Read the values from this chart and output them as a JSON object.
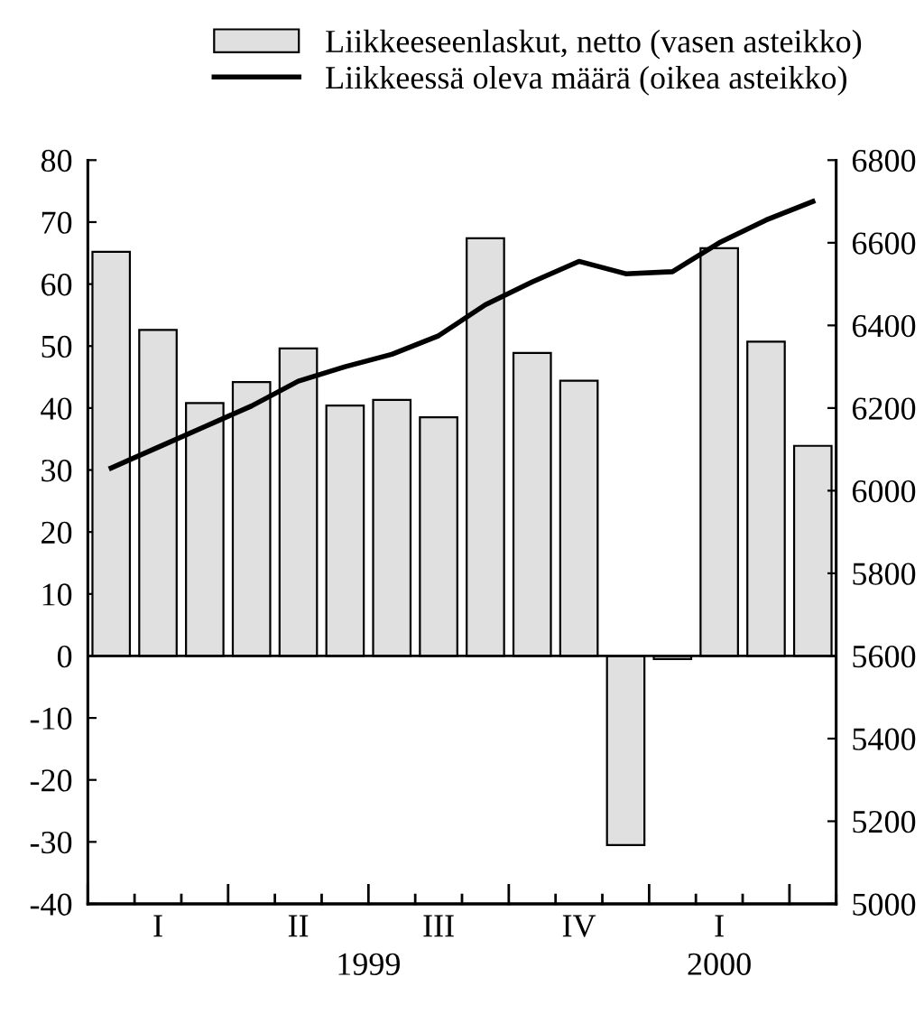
{
  "chart_data": {
    "type": "bar",
    "categories": [
      null,
      "I",
      null,
      null,
      "II",
      null,
      null,
      "III",
      null,
      null,
      "IV",
      null,
      null,
      "I",
      null,
      null
    ],
    "series": [
      {
        "name": "Liikkeeseenlaskut, netto (vasen asteikko)",
        "color": "#e0e0e0",
        "values": [
          65.2,
          52.6,
          40.8,
          44.2,
          49.6,
          40.4,
          41.3,
          38.5,
          67.4,
          48.9,
          44.4,
          -30.5,
          -0.5,
          65.8,
          50.7,
          33.9
        ]
      },
      {
        "name": "Liikkeessä oleva määrä (oikea asteikko)",
        "type": "line",
        "axis": "y2",
        "color": "#000000",
        "values": [
          6055,
          6105,
          6155,
          6205,
          6265,
          6300,
          6330,
          6375,
          6450,
          6505,
          6555,
          6525,
          6530,
          6600,
          6655,
          6700
        ]
      }
    ],
    "annotations": [
      "1999",
      "2000"
    ],
    "ylim": [
      -40,
      80
    ],
    "yticks": [
      -40,
      -30,
      -20,
      -10,
      0,
      10,
      20,
      30,
      40,
      50,
      60,
      70,
      80
    ],
    "y2lim": [
      5000,
      6800
    ],
    "y2ticks": [
      5000,
      5200,
      5400,
      5600,
      5800,
      6000,
      6200,
      6400,
      6600,
      6800
    ],
    "ref_lines": [
      {
        "axis": "y",
        "value": 0,
        "color": "#000000",
        "line_style": "solid"
      }
    ],
    "legend": "top",
    "grid": false,
    "marker": "none",
    "line_style": "solid"
  }
}
